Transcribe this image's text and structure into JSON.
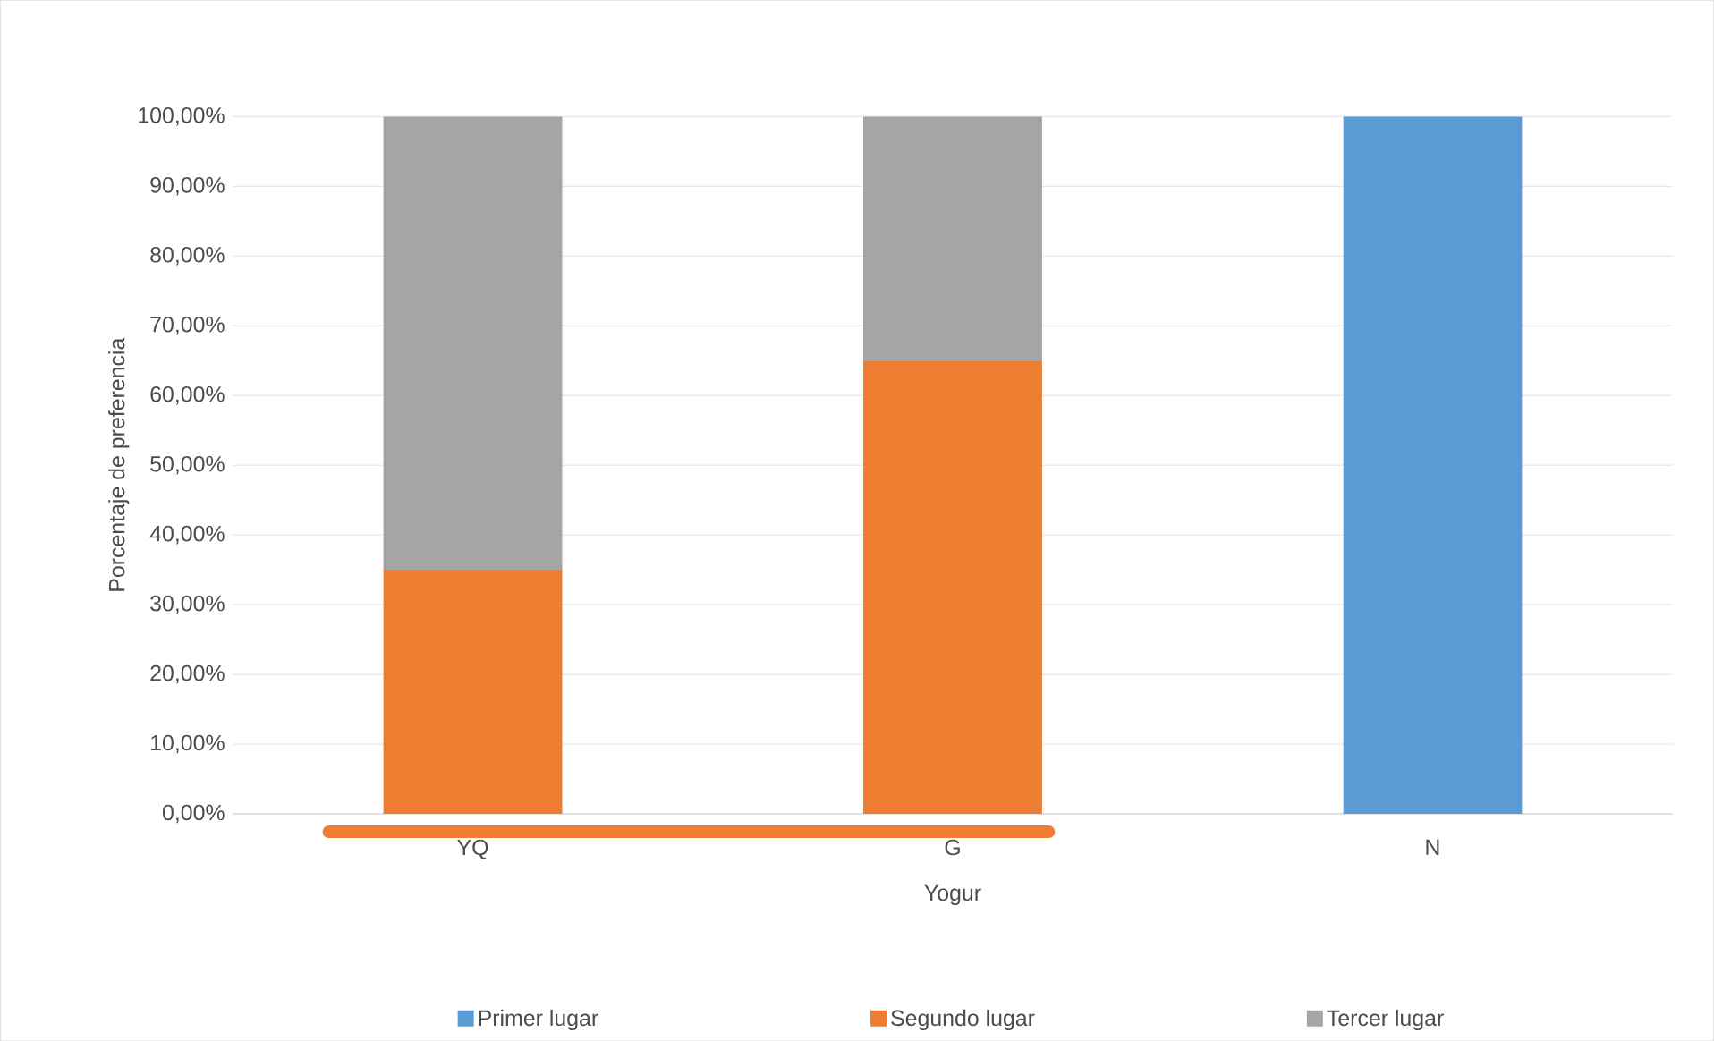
{
  "chart_data": {
    "type": "bar",
    "stacked": true,
    "xlabel": "Yogur",
    "ylabel": "Porcentaje de preferencia",
    "categories": [
      "YQ",
      "G",
      "N"
    ],
    "series": [
      {
        "name": "Primer lugar",
        "color": "#5b9bd5",
        "values": [
          0,
          0,
          100
        ]
      },
      {
        "name": "Segundo lugar",
        "color": "#ed7d31",
        "values": [
          35,
          65,
          0
        ]
      },
      {
        "name": "Tercer lugar",
        "color": "#a5a5a5",
        "values": [
          65,
          35,
          0
        ]
      }
    ],
    "ylim": [
      0,
      100
    ],
    "yticks": [
      {
        "value": 0,
        "label": "0,00%"
      },
      {
        "value": 10,
        "label": "10,00%"
      },
      {
        "value": 20,
        "label": "20,00%"
      },
      {
        "value": 30,
        "label": "30,00%"
      },
      {
        "value": 40,
        "label": "40,00%"
      },
      {
        "value": 50,
        "label": "50,00%"
      },
      {
        "value": 60,
        "label": "60,00%"
      },
      {
        "value": 70,
        "label": "70,00%"
      },
      {
        "value": 80,
        "label": "80,00%"
      },
      {
        "value": 90,
        "label": "90,00%"
      },
      {
        "value": 100,
        "label": "100,00%"
      }
    ],
    "grid": "y",
    "legend": "bottom"
  }
}
